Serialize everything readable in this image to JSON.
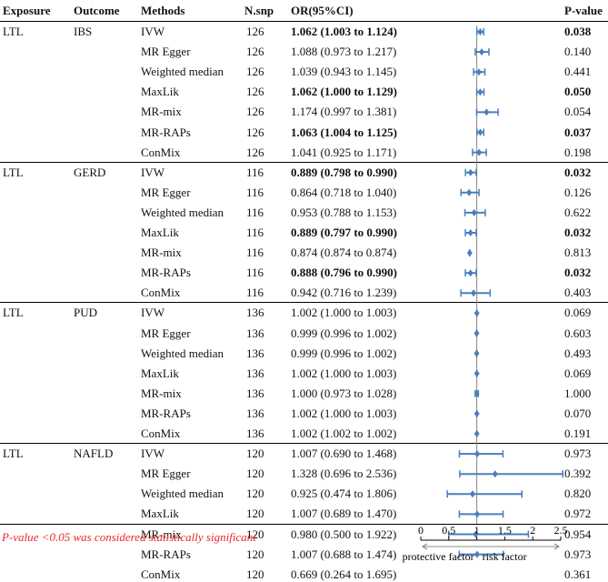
{
  "headers": {
    "exposure": "Exposure",
    "outcome": "Outcome",
    "methods": "Methods",
    "nsnp": "N.snp",
    "or": "OR(95%CI)",
    "pvalue": "P-value"
  },
  "footnote": "P-value <0.05 was considered statistically significant",
  "colors": {
    "marker": "#4a7ebb",
    "note": "#e8262a",
    "line": "#000000"
  },
  "chart_data": {
    "type": "forest",
    "xlim": [
      0,
      2.5
    ],
    "reference_line": 1,
    "x_ticks": [
      "0",
      "0.5",
      "1",
      "1.5",
      "2",
      "2.5"
    ],
    "x_tick_values": [
      0,
      0.5,
      1,
      1.5,
      2,
      2.5
    ],
    "xlabel_left": "protective factor",
    "xlabel_right": "risk factor",
    "rows": [
      {
        "exposure": "LTL",
        "outcome": "IBS",
        "method": "IVW",
        "nsnp": "126",
        "or_text": "1.062 (1.003 to 1.124)",
        "p": "0.038",
        "or": 1.062,
        "lo": 1.003,
        "hi": 1.124,
        "sig": true
      },
      {
        "exposure": "",
        "outcome": "",
        "method": "MR Egger",
        "nsnp": "126",
        "or_text": "1.088 (0.973 to 1.217)",
        "p": "0.140",
        "or": 1.088,
        "lo": 0.973,
        "hi": 1.217,
        "sig": false
      },
      {
        "exposure": "",
        "outcome": "",
        "method": "Weighted median",
        "nsnp": "126",
        "or_text": "1.039 (0.943 to 1.145)",
        "p": "0.441",
        "or": 1.039,
        "lo": 0.943,
        "hi": 1.145,
        "sig": false
      },
      {
        "exposure": "",
        "outcome": "",
        "method": "MaxLik",
        "nsnp": "126",
        "or_text": "1.062 (1.000 to 1.129)",
        "p": "0.050",
        "or": 1.062,
        "lo": 1.0,
        "hi": 1.129,
        "sig": true
      },
      {
        "exposure": "",
        "outcome": "",
        "method": "MR-mix",
        "nsnp": "126",
        "or_text": "1.174 (0.997 to 1.381)",
        "p": "0.054",
        "or": 1.174,
        "lo": 0.997,
        "hi": 1.381,
        "sig": false
      },
      {
        "exposure": "",
        "outcome": "",
        "method": "MR-RAPs",
        "nsnp": "126",
        "or_text": "1.063 (1.004 to 1.125)",
        "p": "0.037",
        "or": 1.063,
        "lo": 1.004,
        "hi": 1.125,
        "sig": true
      },
      {
        "exposure": "",
        "outcome": "",
        "method": "ConMix",
        "nsnp": "126",
        "or_text": "1.041 (0.925 to 1.171)",
        "p": "0.198",
        "or": 1.041,
        "lo": 0.925,
        "hi": 1.171,
        "sig": false
      },
      {
        "exposure": "LTL",
        "outcome": "GERD",
        "method": "IVW",
        "nsnp": "116",
        "or_text": "0.889 (0.798 to 0.990)",
        "p": "0.032",
        "or": 0.889,
        "lo": 0.798,
        "hi": 0.99,
        "sig": true
      },
      {
        "exposure": "",
        "outcome": "",
        "method": "MR Egger",
        "nsnp": "116",
        "or_text": "0.864 (0.718 to 1.040)",
        "p": "0.126",
        "or": 0.864,
        "lo": 0.718,
        "hi": 1.04,
        "sig": false
      },
      {
        "exposure": "",
        "outcome": "",
        "method": "Weighted median",
        "nsnp": "116",
        "or_text": "0.953 (0.788 to 1.153)",
        "p": "0.622",
        "or": 0.953,
        "lo": 0.788,
        "hi": 1.153,
        "sig": false
      },
      {
        "exposure": "",
        "outcome": "",
        "method": "MaxLik",
        "nsnp": "116",
        "or_text": "0.889 (0.797 to 0.990)",
        "p": "0.032",
        "or": 0.889,
        "lo": 0.797,
        "hi": 0.99,
        "sig": true
      },
      {
        "exposure": "",
        "outcome": "",
        "method": "MR-mix",
        "nsnp": "116",
        "or_text": "0.874 (0.874 to 0.874)",
        "p": "0.813",
        "or": 0.874,
        "lo": 0.874,
        "hi": 0.874,
        "sig": false
      },
      {
        "exposure": "",
        "outcome": "",
        "method": "MR-RAPs",
        "nsnp": "116",
        "or_text": "0.888 (0.796 to 0.990)",
        "p": "0.032",
        "or": 0.888,
        "lo": 0.796,
        "hi": 0.99,
        "sig": true
      },
      {
        "exposure": "",
        "outcome": "",
        "method": "ConMix",
        "nsnp": "116",
        "or_text": "0.942 (0.716 to 1.239)",
        "p": "0.403",
        "or": 0.942,
        "lo": 0.716,
        "hi": 1.239,
        "sig": false
      },
      {
        "exposure": "LTL",
        "outcome": "PUD",
        "method": "IVW",
        "nsnp": "136",
        "or_text": "1.002 (1.000 to 1.003)",
        "p": "0.069",
        "or": 1.002,
        "lo": 1.0,
        "hi": 1.003,
        "sig": false
      },
      {
        "exposure": "",
        "outcome": "",
        "method": "MR Egger",
        "nsnp": "136",
        "or_text": "0.999 (0.996 to 1.002)",
        "p": "0.603",
        "or": 0.999,
        "lo": 0.996,
        "hi": 1.002,
        "sig": false
      },
      {
        "exposure": "",
        "outcome": "",
        "method": "Weighted median",
        "nsnp": "136",
        "or_text": "0.999 (0.996 to 1.002)",
        "p": "0.493",
        "or": 0.999,
        "lo": 0.996,
        "hi": 1.002,
        "sig": false
      },
      {
        "exposure": "",
        "outcome": "",
        "method": "MaxLik",
        "nsnp": "136",
        "or_text": "1.002 (1.000 to 1.003)",
        "p": "0.069",
        "or": 1.002,
        "lo": 1.0,
        "hi": 1.003,
        "sig": false
      },
      {
        "exposure": "",
        "outcome": "",
        "method": "MR-mix",
        "nsnp": "136",
        "or_text": "1.000 (0.973 to 1.028)",
        "p": "1.000",
        "or": 1.0,
        "lo": 0.973,
        "hi": 1.028,
        "sig": false
      },
      {
        "exposure": "",
        "outcome": "",
        "method": "MR-RAPs",
        "nsnp": "136",
        "or_text": "1.002 (1.000 to 1.003)",
        "p": "0.070",
        "or": 1.002,
        "lo": 1.0,
        "hi": 1.003,
        "sig": false
      },
      {
        "exposure": "",
        "outcome": "",
        "method": "ConMix",
        "nsnp": "136",
        "or_text": "1.002 (1.002 to 1.002)",
        "p": "0.191",
        "or": 1.002,
        "lo": 1.002,
        "hi": 1.002,
        "sig": false
      },
      {
        "exposure": "LTL",
        "outcome": "NAFLD",
        "method": "IVW",
        "nsnp": "120",
        "or_text": "1.007 (0.690 to 1.468)",
        "p": "0.973",
        "or": 1.007,
        "lo": 0.69,
        "hi": 1.468,
        "sig": false
      },
      {
        "exposure": "",
        "outcome": "",
        "method": "MR Egger",
        "nsnp": "120",
        "or_text": "1.328 (0.696 to 2.536)",
        "p": "0.392",
        "or": 1.328,
        "lo": 0.696,
        "hi": 2.536,
        "sig": false
      },
      {
        "exposure": "",
        "outcome": "",
        "method": "Weighted median",
        "nsnp": "120",
        "or_text": "0.925 (0.474 to 1.806)",
        "p": "0.820",
        "or": 0.925,
        "lo": 0.474,
        "hi": 1.806,
        "sig": false
      },
      {
        "exposure": "",
        "outcome": "",
        "method": "MaxLik",
        "nsnp": "120",
        "or_text": "1.007 (0.689 to 1.470)",
        "p": "0.972",
        "or": 1.007,
        "lo": 0.689,
        "hi": 1.47,
        "sig": false
      },
      {
        "exposure": "",
        "outcome": "",
        "method": "MR-mix",
        "nsnp": "120",
        "or_text": "0.980 (0.500 to 1.922)",
        "p": "0.954",
        "or": 0.98,
        "lo": 0.5,
        "hi": 1.922,
        "sig": false
      },
      {
        "exposure": "",
        "outcome": "",
        "method": "MR-RAPs",
        "nsnp": "120",
        "or_text": "1.007 (0.688 to 1.474)",
        "p": "0.973",
        "or": 1.007,
        "lo": 0.688,
        "hi": 1.474,
        "sig": false
      },
      {
        "exposure": "",
        "outcome": "",
        "method": "ConMix",
        "nsnp": "120",
        "or_text": "0.669 (0.264 to 1.695)",
        "p": "0.361",
        "or": 0.669,
        "lo": 0.264,
        "hi": 1.695,
        "sig": false
      }
    ]
  }
}
